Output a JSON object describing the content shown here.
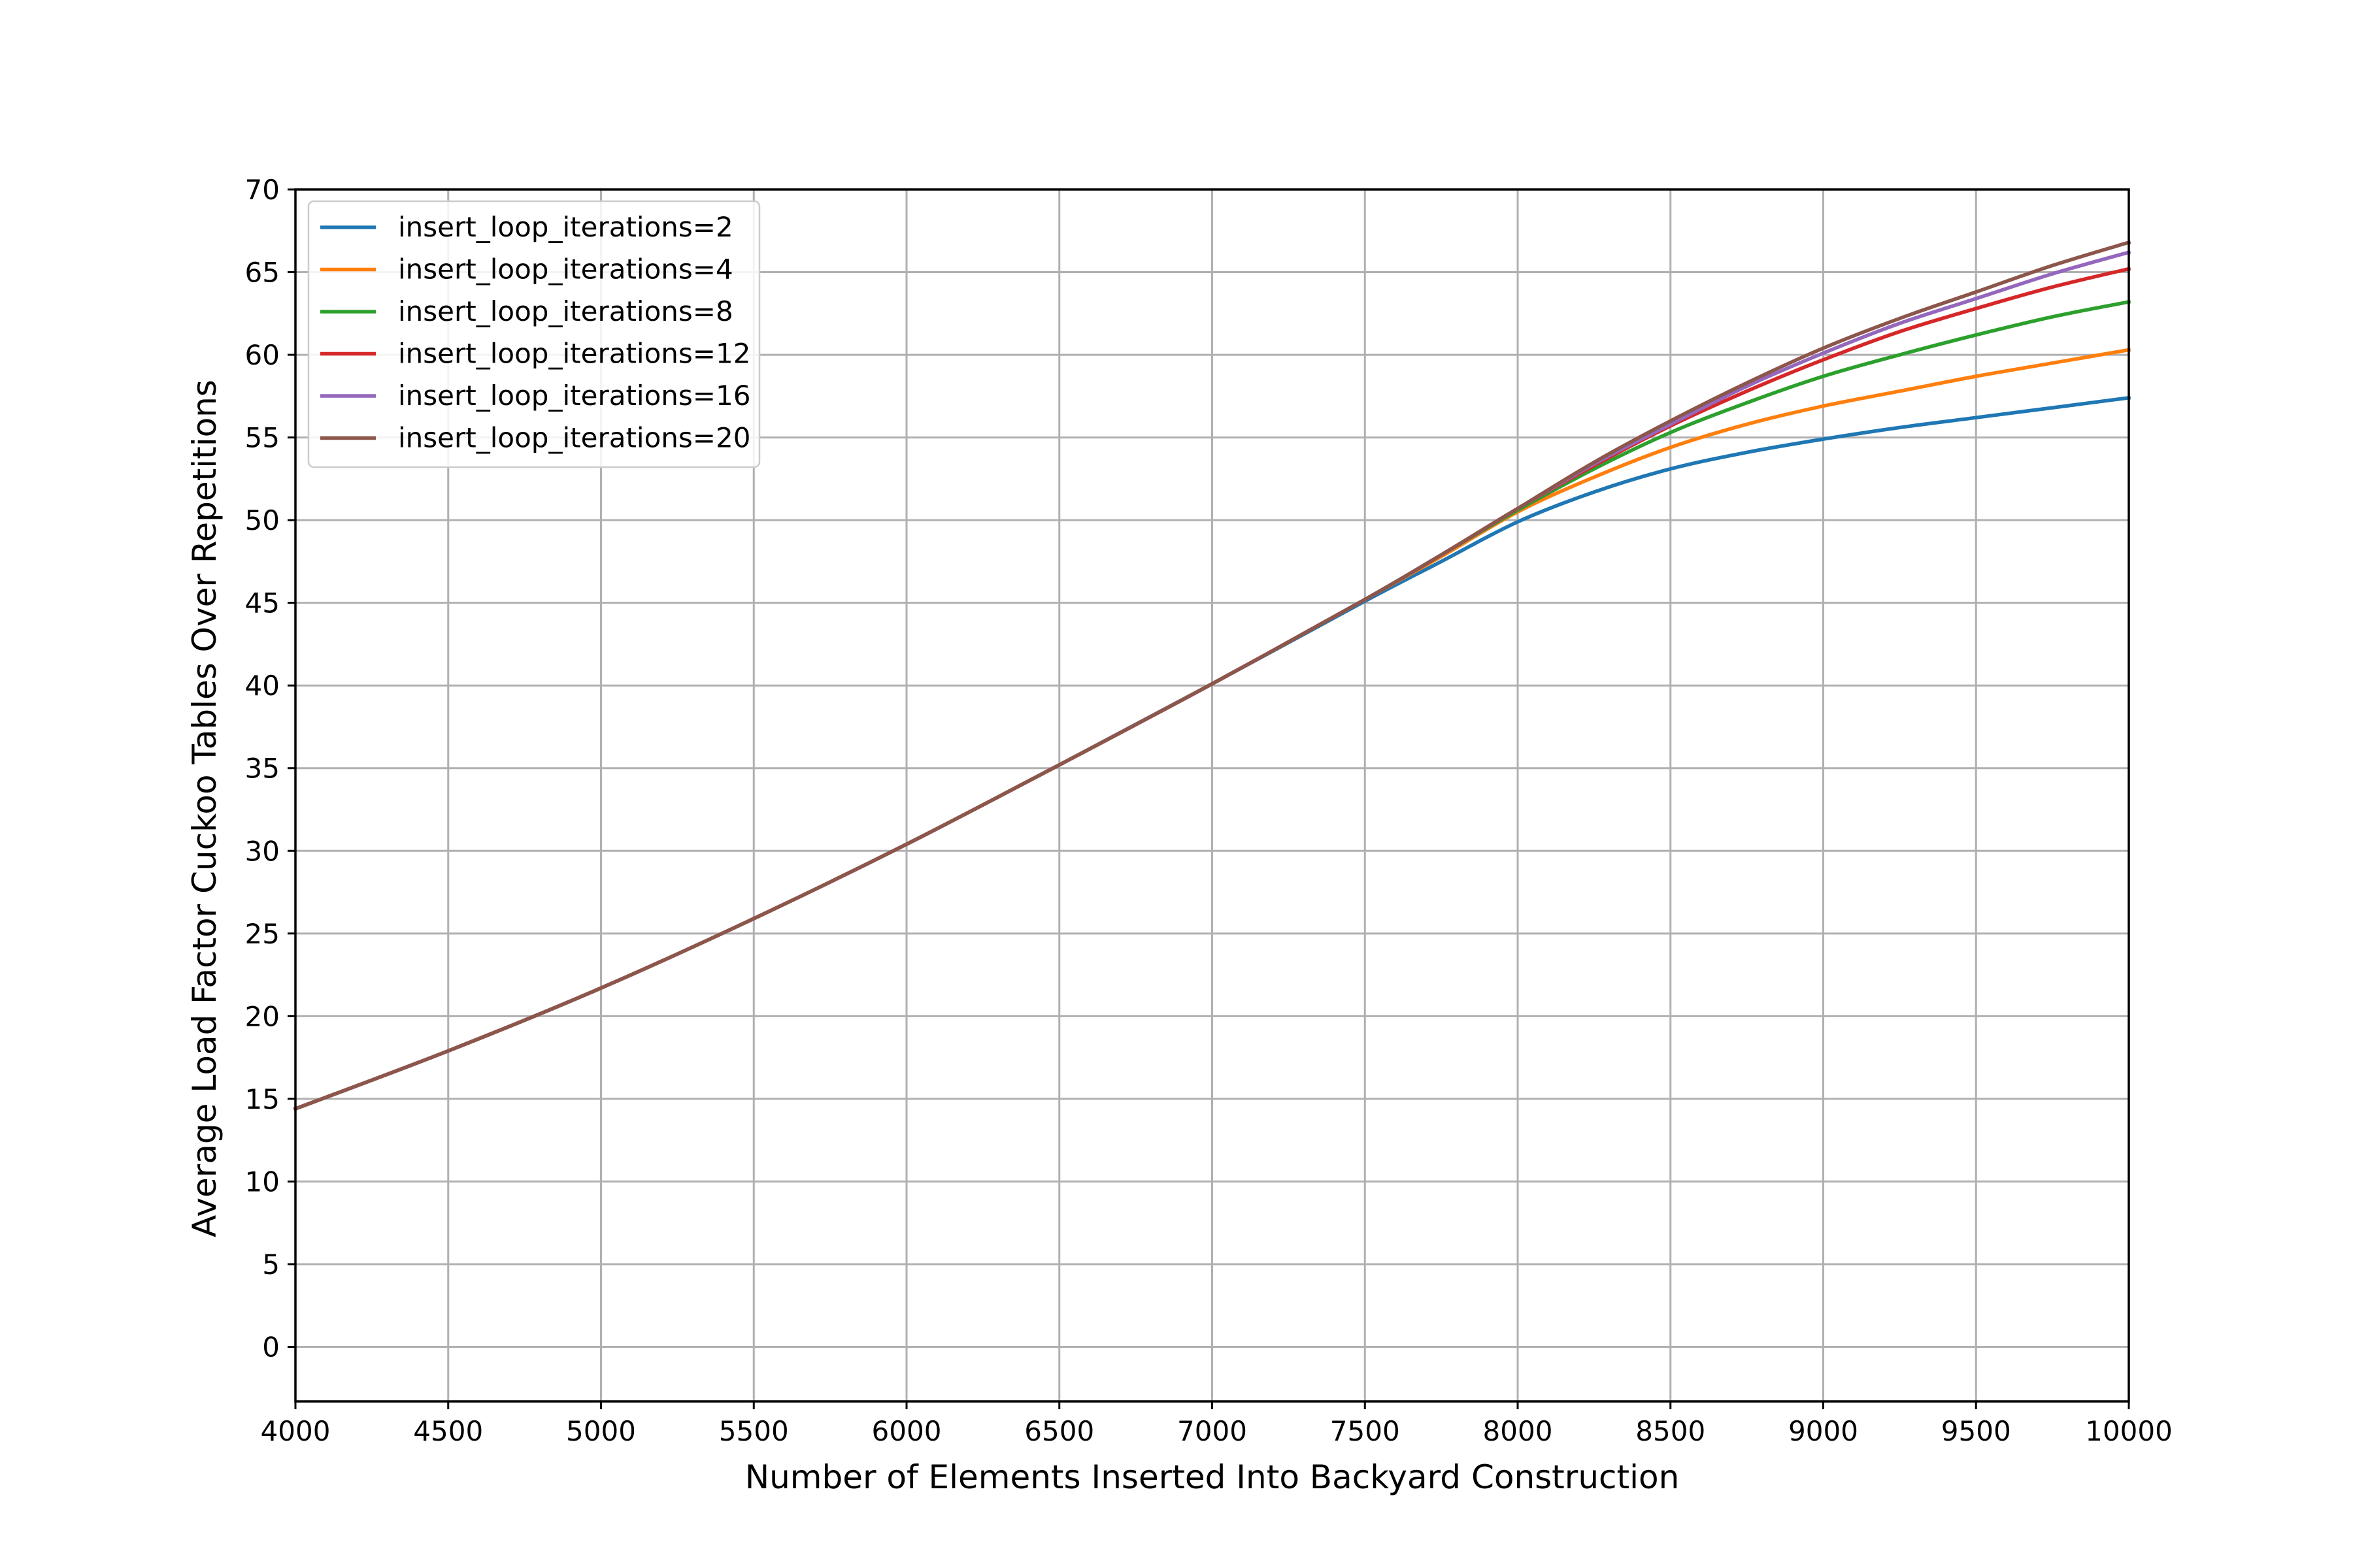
{
  "chart_data": {
    "type": "line",
    "title": "",
    "xlabel": "Number of Elements Inserted Into Backyard Construction",
    "ylabel": "Average Load Factor Cuckoo Tables Over Repetitions",
    "xlim": [
      4000,
      10000
    ],
    "ylim": [
      -3.3,
      70
    ],
    "xticks": [
      4000,
      4500,
      5000,
      5500,
      6000,
      6500,
      7000,
      7500,
      8000,
      8500,
      9000,
      9500,
      10000
    ],
    "yticks": [
      0,
      5,
      10,
      15,
      20,
      25,
      30,
      35,
      40,
      45,
      50,
      55,
      60,
      65,
      70
    ],
    "grid": true,
    "legend_position": "upper-left",
    "x": [
      4000,
      4500,
      5000,
      5500,
      6000,
      6500,
      7000,
      7500,
      7750,
      8000,
      8250,
      8500,
      8750,
      9000,
      9250,
      9500,
      9750,
      10000
    ],
    "series": [
      {
        "name": "insert_loop_iterations=2",
        "color": "#1f77b4",
        "values": [
          14.4,
          17.9,
          21.7,
          25.9,
          30.4,
          35.2,
          40.1,
          45.1,
          47.5,
          49.9,
          51.7,
          53.1,
          54.1,
          54.9,
          55.6,
          56.2,
          56.8,
          57.4
        ]
      },
      {
        "name": "insert_loop_iterations=4",
        "color": "#ff7f0e",
        "values": [
          14.4,
          17.9,
          21.7,
          25.9,
          30.4,
          35.2,
          40.1,
          45.2,
          47.8,
          50.5,
          52.6,
          54.4,
          55.8,
          56.9,
          57.8,
          58.7,
          59.5,
          60.3
        ]
      },
      {
        "name": "insert_loop_iterations=8",
        "color": "#2ca02c",
        "values": [
          14.4,
          17.9,
          21.7,
          25.9,
          30.4,
          35.2,
          40.1,
          45.2,
          47.9,
          50.6,
          53.1,
          55.3,
          57.1,
          58.7,
          60.0,
          61.2,
          62.3,
          63.2
        ]
      },
      {
        "name": "insert_loop_iterations=12",
        "color": "#d62728",
        "values": [
          14.4,
          17.9,
          21.7,
          25.9,
          30.4,
          35.2,
          40.1,
          45.2,
          47.9,
          50.7,
          53.3,
          55.7,
          57.8,
          59.7,
          61.4,
          62.8,
          64.1,
          65.2
        ]
      },
      {
        "name": "insert_loop_iterations=16",
        "color": "#9467bd",
        "values": [
          14.4,
          17.9,
          21.7,
          25.9,
          30.4,
          35.2,
          40.1,
          45.2,
          47.9,
          50.7,
          53.4,
          55.8,
          58.1,
          60.1,
          61.9,
          63.4,
          64.9,
          66.2
        ]
      },
      {
        "name": "insert_loop_iterations=20",
        "color": "#8c564b",
        "values": [
          14.4,
          17.9,
          21.7,
          25.9,
          30.4,
          35.2,
          40.1,
          45.2,
          47.9,
          50.7,
          53.5,
          56.0,
          58.3,
          60.4,
          62.2,
          63.8,
          65.4,
          66.8
        ]
      }
    ]
  }
}
